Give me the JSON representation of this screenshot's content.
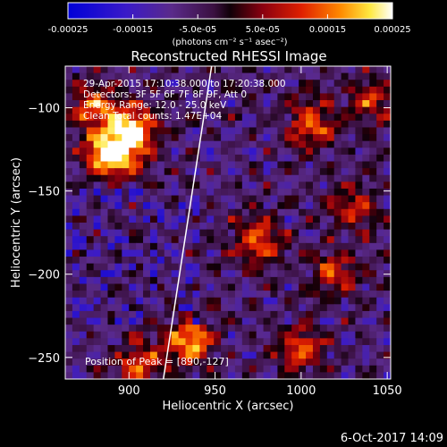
{
  "chart_data": {
    "type": "heatmap",
    "title": "Reconstructed RHESSI Image",
    "xlabel": "Heliocentric X (arcsec)",
    "ylabel": "Heliocentric Y (arcsec)",
    "xlim": [
      863,
      1052
    ],
    "ylim": [
      -263,
      -75
    ],
    "x_ticks": [
      900,
      950,
      1000,
      1050
    ],
    "y_ticks": [
      -100,
      -150,
      -200,
      -250
    ],
    "colorbar": {
      "range": [
        -0.00025,
        0.00025
      ],
      "tick_values": [
        -0.00025,
        -0.00015,
        -5e-05,
        5e-05,
        0.00015,
        0.00025
      ],
      "tick_labels": [
        "-0.00025",
        "-0.00015",
        "-5.0e-05",
        "5.0e-05",
        "0.00015",
        "0.00025"
      ],
      "units": "(photons cm⁻² s⁻¹ asec⁻²)",
      "colormap": "blue-purple-red-yellow-white"
    },
    "info_lines": [
      "29-Apr-2015 17:10:38.000 to 17:20:38.000",
      "Detectors: 3F 5F 6F 7F 8F 9F, Att 0",
      "Energy Range: 12.0 - 25.0 keV",
      "Clean     Total counts: 1.47E+04"
    ],
    "peak_label": "Position of Peak = [890,-127]",
    "peak_position": [
      890,
      -127
    ],
    "limb_line": [
      [
        948,
        -75
      ],
      [
        920,
        -263
      ]
    ],
    "hotspots": [
      {
        "x": 890,
        "y": -127,
        "amp": 1.0
      },
      {
        "x": 903,
        "y": -113,
        "amp": 0.75
      },
      {
        "x": 880,
        "y": -100,
        "amp": 0.55
      },
      {
        "x": 935,
        "y": -240,
        "amp": 0.7
      },
      {
        "x": 905,
        "y": -255,
        "amp": 0.5
      },
      {
        "x": 1005,
        "y": -110,
        "amp": 0.55
      },
      {
        "x": 1040,
        "y": -95,
        "amp": 0.45
      },
      {
        "x": 975,
        "y": -180,
        "amp": 0.5
      },
      {
        "x": 1020,
        "y": -200,
        "amp": 0.45
      },
      {
        "x": 1000,
        "y": -245,
        "amp": 0.55
      },
      {
        "x": 1030,
        "y": -160,
        "amp": 0.4
      }
    ]
  },
  "timestamp": "6-Oct-2017 14:09"
}
